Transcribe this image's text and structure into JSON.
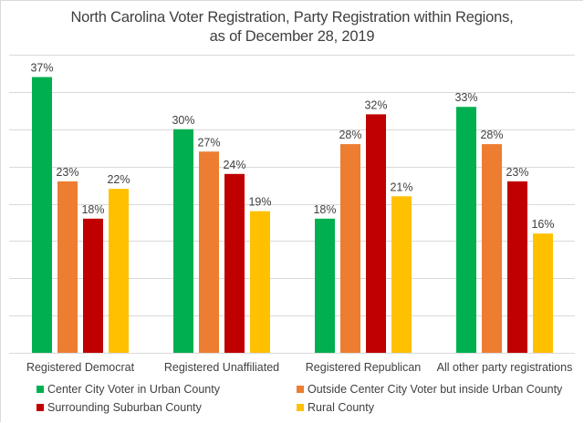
{
  "chart_data": {
    "type": "bar",
    "title": "North Carolina Voter Registration, Party Registration within Regions,",
    "subtitle": "as of December 28, 2019",
    "xlabel": "",
    "ylabel": "",
    "ylim": [
      0,
      40
    ],
    "y_gridline_step": 5,
    "grid": true,
    "y_axis_labels_visible": false,
    "legend_position": "bottom",
    "value_format": "percent",
    "categories": [
      "Registered Democrat",
      "Registered Unaffiliated",
      "Registered Republican",
      "All other party registrations"
    ],
    "series": [
      {
        "name": "Center City Voter in Urban County",
        "color": "#00B050",
        "values": [
          37,
          30,
          18,
          33
        ]
      },
      {
        "name": "Outside Center City Voter but inside Urban County",
        "color": "#ED7D31",
        "values": [
          23,
          27,
          28,
          28
        ]
      },
      {
        "name": "Surrounding Suburban County",
        "color": "#C00000",
        "values": [
          18,
          24,
          32,
          23
        ]
      },
      {
        "name": "Rural County",
        "color": "#FFC000",
        "values": [
          22,
          19,
          21,
          16
        ]
      }
    ],
    "data_labels": [
      [
        "37%",
        "30%",
        "18%",
        "33%"
      ],
      [
        "23%",
        "27%",
        "28%",
        "28%"
      ],
      [
        "18%",
        "24%",
        "32%",
        "23%"
      ],
      [
        "22%",
        "19%",
        "21%",
        "16%"
      ]
    ]
  },
  "colors": {
    "gridline": "#d9d9d9",
    "text": "#404040"
  }
}
